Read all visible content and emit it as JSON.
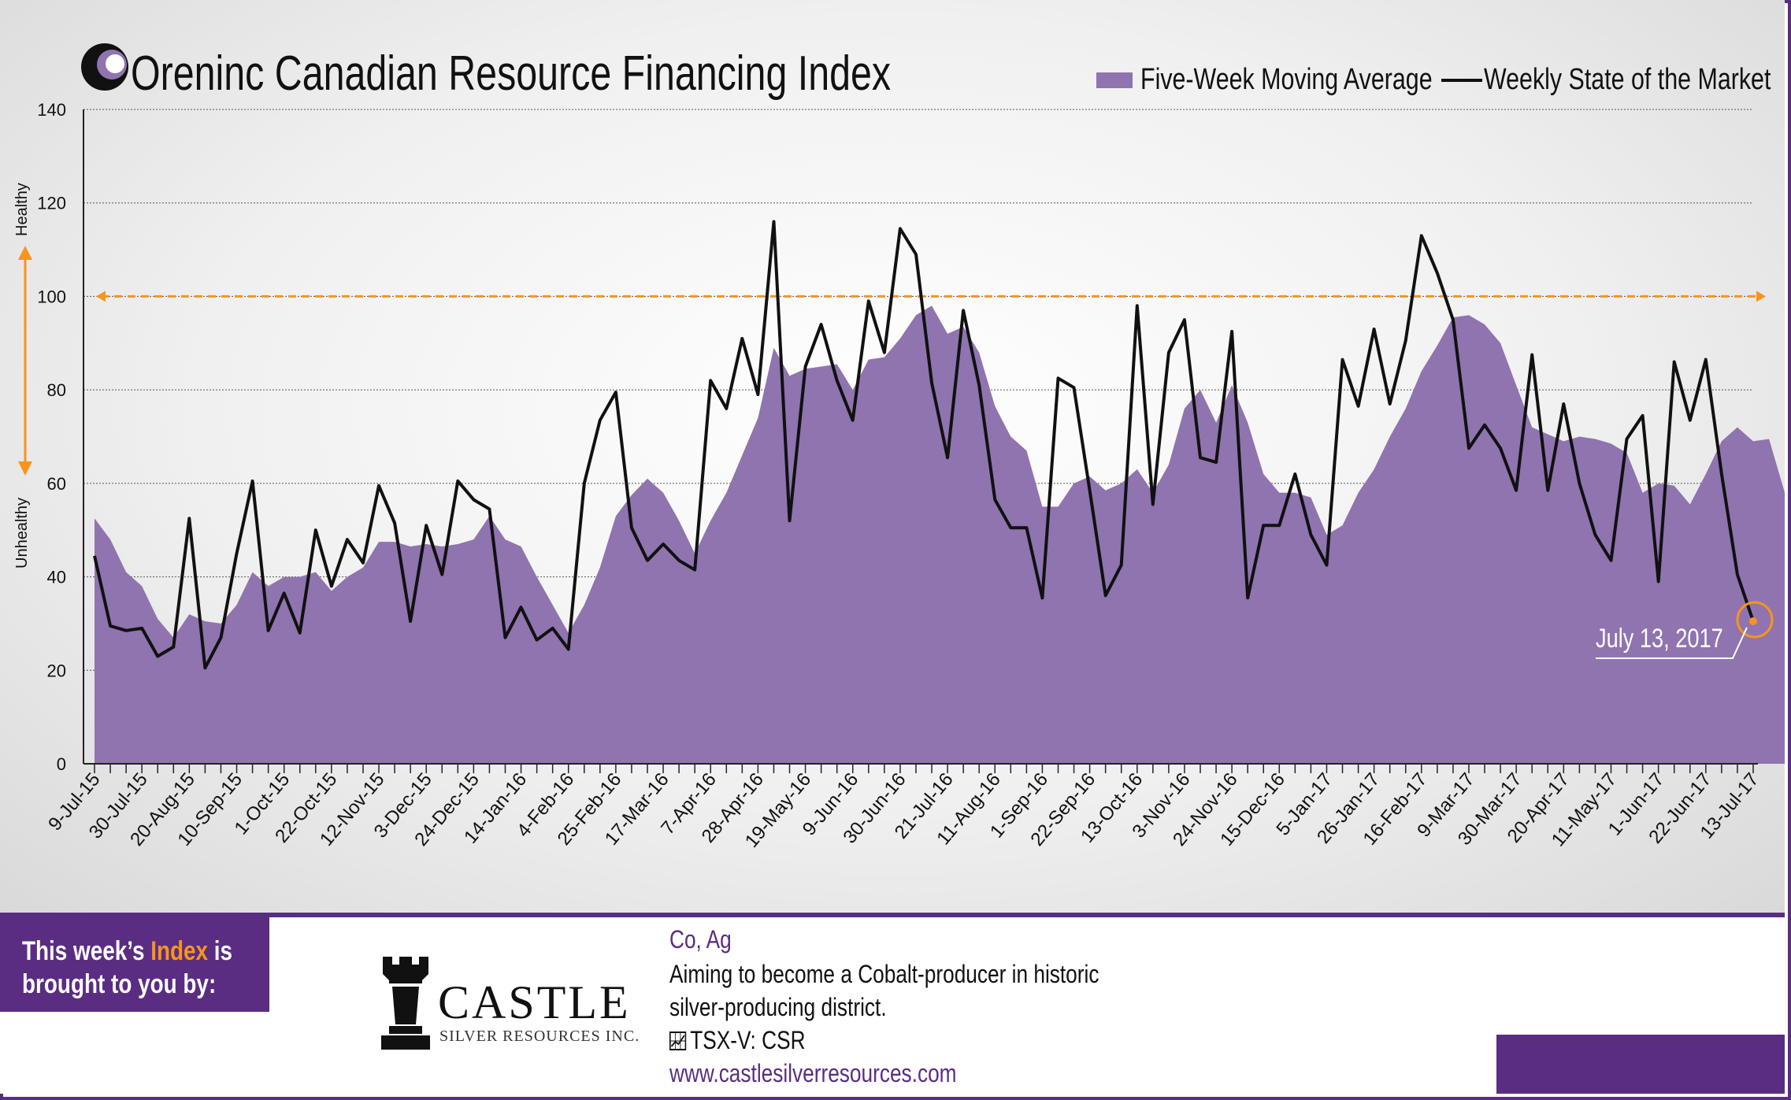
{
  "header": {
    "brand": "Oreninc",
    "title_main": "Canadian Resource Financing Index"
  },
  "legend": {
    "area_label": "Five-Week Moving Average",
    "line_label": "Weekly State of the Market"
  },
  "axis_side_labels": {
    "top": "Healthy",
    "bottom": "Unhealthy"
  },
  "annotation": "July 13, 2017",
  "colors": {
    "area": "#8f74b0",
    "line": "#111111",
    "threshold": "#f7941d",
    "brand_purple": "#5a2d82",
    "highlight": "#f7941d"
  },
  "chart_data": {
    "type": "line",
    "ylim": [
      0,
      140
    ],
    "yticks": [
      0,
      20,
      40,
      60,
      80,
      100,
      120,
      140
    ],
    "threshold": 100,
    "grid": true,
    "legend_position": "top-right",
    "xtick_labels": [
      "9-Jul-15",
      "30-Jul-15",
      "20-Aug-15",
      "10-Sep-15",
      "1-Oct-15",
      "22-Oct-15",
      "12-Nov-15",
      "3-Dec-15",
      "24-Dec-15",
      "14-Jan-16",
      "4-Feb-16",
      "25-Feb-16",
      "17-Mar-16",
      "7-Apr-16",
      "28-Apr-16",
      "19-May-16",
      "9-Jun-16",
      "30-Jun-16",
      "21-Jul-16",
      "11-Aug-16",
      "1-Sep-16",
      "22-Sep-16",
      "13-Oct-16",
      "3-Nov-16",
      "24-Nov-16",
      "15-Dec-16",
      "5-Jan-17",
      "26-Jan-17",
      "16-Feb-17",
      "9-Mar-17",
      "30-Mar-17",
      "20-Apr-17",
      "11-May-17",
      "1-Jun-17",
      "22-Jun-17",
      "13-Jul-17"
    ],
    "series": [
      {
        "name": "Five-Week Moving Average",
        "type": "area",
        "values": [
          52.5,
          48,
          41,
          38,
          31,
          27,
          32,
          30.5,
          30,
          34,
          41,
          38,
          40,
          40,
          41,
          37,
          40,
          42,
          47.5,
          47.5,
          46.5,
          47,
          46.5,
          47,
          48,
          53,
          48,
          46.5,
          40,
          34,
          28,
          34,
          42,
          53,
          57.5,
          61,
          58,
          52,
          45,
          52,
          58,
          66,
          74,
          89,
          83,
          84.5,
          85,
          85.5,
          80,
          86.5,
          87,
          91,
          96,
          98,
          92,
          93.5,
          88,
          76.5,
          70,
          67,
          55,
          55,
          60,
          61.5,
          58.5,
          60,
          63,
          58,
          64,
          76,
          80,
          73,
          81,
          73,
          62,
          58,
          58,
          57,
          49,
          51,
          58,
          63,
          70,
          76,
          84,
          89.5,
          95.5,
          96,
          94,
          90,
          81,
          72,
          70.5,
          69,
          70,
          69.5,
          68.5,
          66.5,
          58,
          60,
          59.5,
          55.5,
          62,
          69,
          72,
          69,
          69.5,
          58
        ]
      },
      {
        "name": "Weekly State of the Market",
        "type": "line",
        "values": [
          44.5,
          29.5,
          28.5,
          29,
          23,
          25,
          52.5,
          20.5,
          27,
          45,
          60.5,
          28.5,
          36.5,
          28,
          50,
          38,
          48,
          43,
          59.5,
          51.5,
          30.5,
          51,
          40.5,
          60.5,
          56.5,
          54.5,
          27,
          33.5,
          26.5,
          29,
          24.5,
          60,
          73.5,
          79.5,
          50.5,
          43.5,
          47,
          43.5,
          41.5,
          82,
          76,
          91,
          79,
          116,
          52,
          85,
          94,
          82,
          73.5,
          99,
          88,
          114.5,
          109,
          81.5,
          65.5,
          97,
          81,
          56.5,
          50.5,
          50.5,
          35.5,
          82.5,
          80.5,
          58.5,
          36,
          42.5,
          98,
          55.5,
          88,
          95,
          65.5,
          64.5,
          92.5,
          35.5,
          51,
          51,
          62,
          49,
          42.5,
          86.5,
          76.5,
          93,
          77,
          90.5,
          113,
          105,
          95,
          67.5,
          72.5,
          67.5,
          58.5,
          87.5,
          58.5,
          77,
          60,
          49,
          43.5,
          69.5,
          74.5,
          39,
          86,
          73.5,
          86.5,
          62,
          40.5,
          30.5
        ]
      }
    ]
  },
  "sponsor": {
    "line1_pre": "This week’s ",
    "line1_hl": "Index",
    "line1_post": " is",
    "line2": "brought to you by:",
    "company_name": "CASTLE",
    "company_sub": "SILVER RESOURCES INC.",
    "commodities": "Co, Ag",
    "desc_line1": "Aiming to become a Cobalt-producer in historic",
    "desc_line2": "silver-producing district.",
    "ticker": "TSX-V:  CSR",
    "website": "www.castlesilverresources.com"
  }
}
